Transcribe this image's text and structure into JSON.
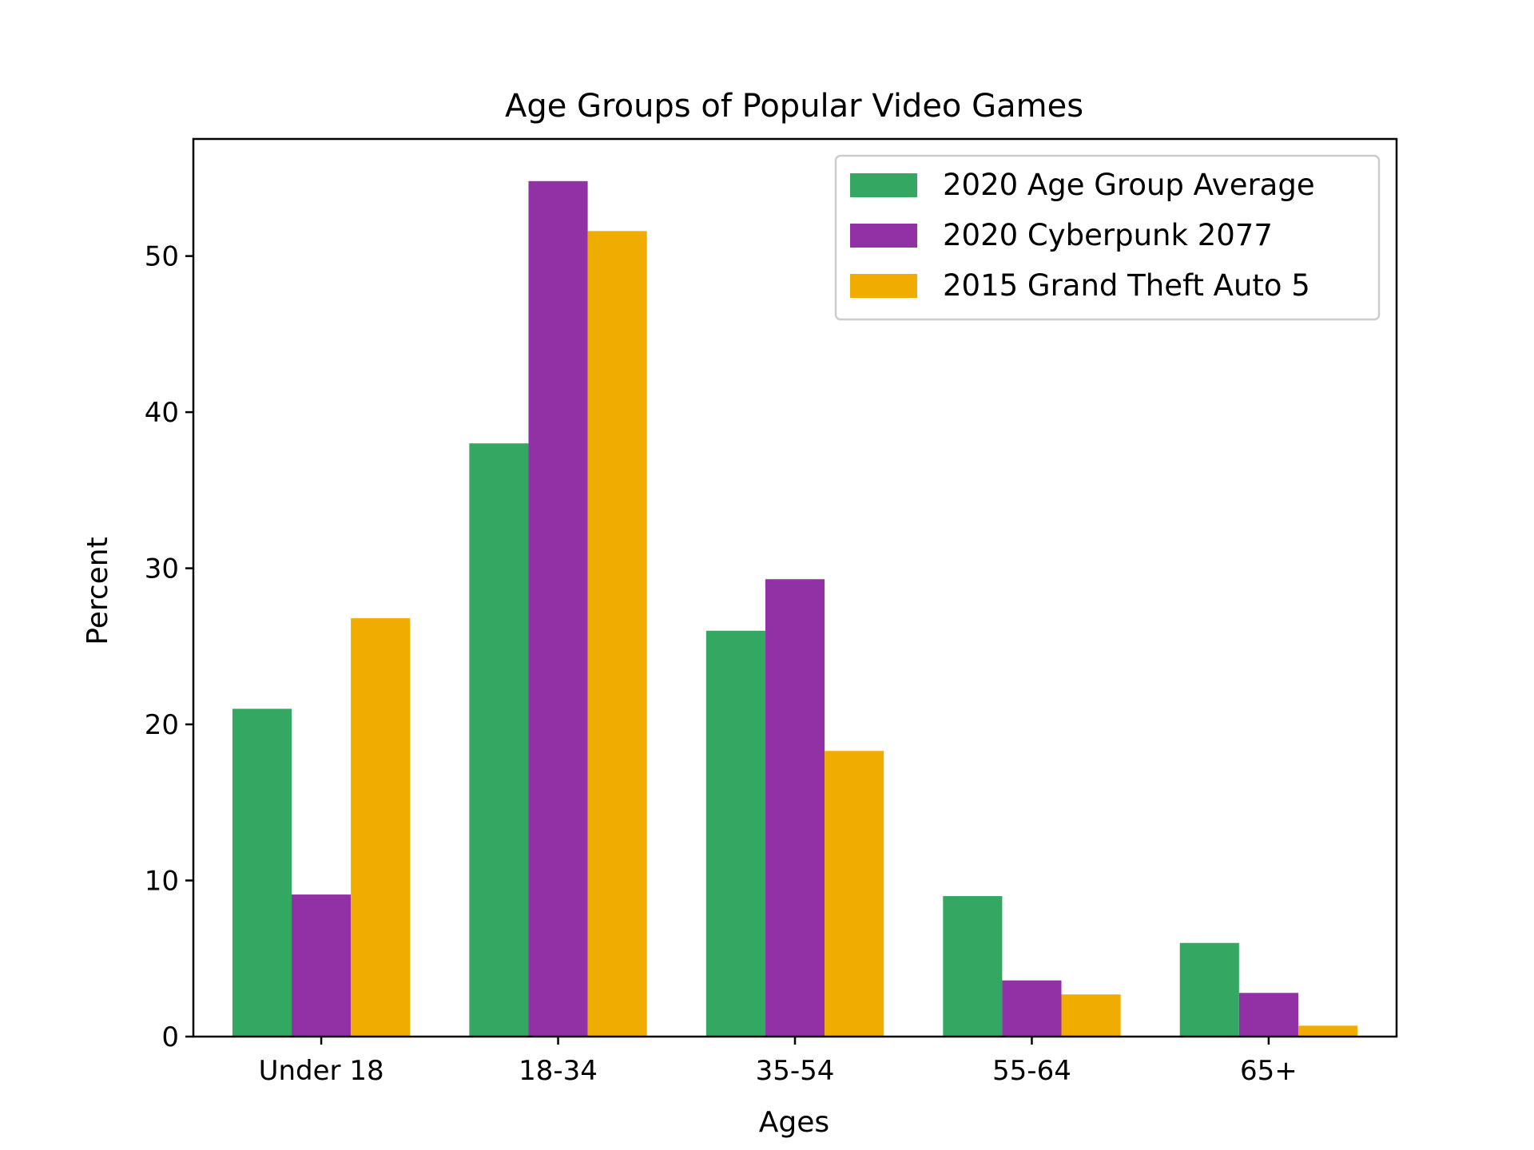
{
  "chart_data": {
    "type": "bar",
    "title": "Age Groups of Popular Video Games",
    "xlabel": "Ages",
    "ylabel": "Percent",
    "categories": [
      "Under 18",
      "18-34",
      "35-54",
      "55-64",
      "65+"
    ],
    "yticks": [
      0,
      10,
      20,
      30,
      40,
      50
    ],
    "ylim": [
      0,
      57.5
    ],
    "grid": false,
    "legend_position": "top-right",
    "series": [
      {
        "name": "2020 Age Group Average",
        "color": "#34a862",
        "values": [
          21,
          38,
          26,
          9,
          6
        ]
      },
      {
        "name": "2020 Cyberpunk 2077",
        "color": "#9230a6",
        "values": [
          9.1,
          54.8,
          29.3,
          3.6,
          2.8
        ]
      },
      {
        "name": "2015 Grand Theft Auto 5",
        "color": "#f0ad00",
        "values": [
          26.8,
          51.6,
          18.3,
          2.7,
          0.7
        ]
      }
    ]
  }
}
